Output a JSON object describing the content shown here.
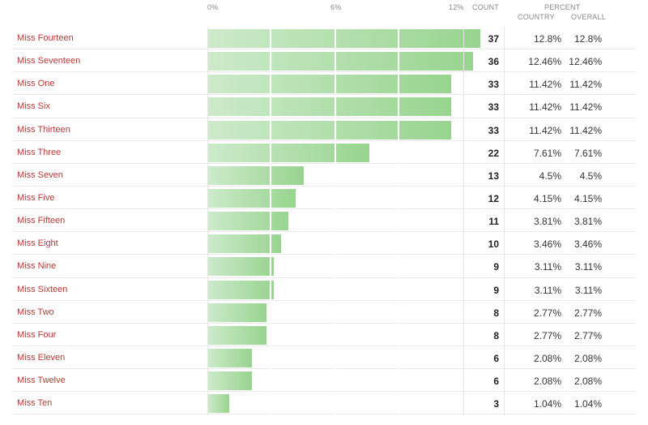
{
  "chart_data": {
    "type": "bar",
    "orientation": "horizontal",
    "axis_ticks": [
      "0%",
      "6%",
      "12%"
    ],
    "xlim": [
      0,
      12
    ],
    "columns": {
      "count": "COUNT",
      "percent": "PERCENT",
      "country": "COUNTRY",
      "overall": "OVERALL"
    },
    "rows": [
      {
        "name": "Miss Fourteen",
        "count": 37,
        "country": "12.8%",
        "overall": "12.8%",
        "value": 12.8
      },
      {
        "name": "Miss Seventeen",
        "count": 36,
        "country": "12.46%",
        "overall": "12.46%",
        "value": 12.46
      },
      {
        "name": "Miss One",
        "count": 33,
        "country": "11.42%",
        "overall": "11.42%",
        "value": 11.42
      },
      {
        "name": "Miss Six",
        "count": 33,
        "country": "11.42%",
        "overall": "11.42%",
        "value": 11.42
      },
      {
        "name": "Miss Thirteen",
        "count": 33,
        "country": "11.42%",
        "overall": "11.42%",
        "value": 11.42
      },
      {
        "name": "Miss Three",
        "count": 22,
        "country": "7.61%",
        "overall": "7.61%",
        "value": 7.61
      },
      {
        "name": "Miss Seven",
        "count": 13,
        "country": "4.5%",
        "overall": "4.5%",
        "value": 4.5
      },
      {
        "name": "Miss Five",
        "count": 12,
        "country": "4.15%",
        "overall": "4.15%",
        "value": 4.15
      },
      {
        "name": "Miss Fifteen",
        "count": 11,
        "country": "3.81%",
        "overall": "3.81%",
        "value": 3.81
      },
      {
        "name": "Miss Eight",
        "count": 10,
        "country": "3.46%",
        "overall": "3.46%",
        "value": 3.46
      },
      {
        "name": "Miss Nine",
        "count": 9,
        "country": "3.11%",
        "overall": "3.11%",
        "value": 3.11
      },
      {
        "name": "Miss Sixteen",
        "count": 9,
        "country": "3.11%",
        "overall": "3.11%",
        "value": 3.11
      },
      {
        "name": "Miss Two",
        "count": 8,
        "country": "2.77%",
        "overall": "2.77%",
        "value": 2.77
      },
      {
        "name": "Miss Four",
        "count": 8,
        "country": "2.77%",
        "overall": "2.77%",
        "value": 2.77
      },
      {
        "name": "Miss Eleven",
        "count": 6,
        "country": "2.08%",
        "overall": "2.08%",
        "value": 2.08
      },
      {
        "name": "Miss Twelve",
        "count": 6,
        "country": "2.08%",
        "overall": "2.08%",
        "value": 2.08
      },
      {
        "name": "Miss Ten",
        "count": 3,
        "country": "1.04%",
        "overall": "1.04%",
        "value": 1.04
      }
    ],
    "colors": {
      "bar_light": "#cdeacb",
      "bar_dark": "#98d48f",
      "name_text": "#b03a35"
    }
  }
}
